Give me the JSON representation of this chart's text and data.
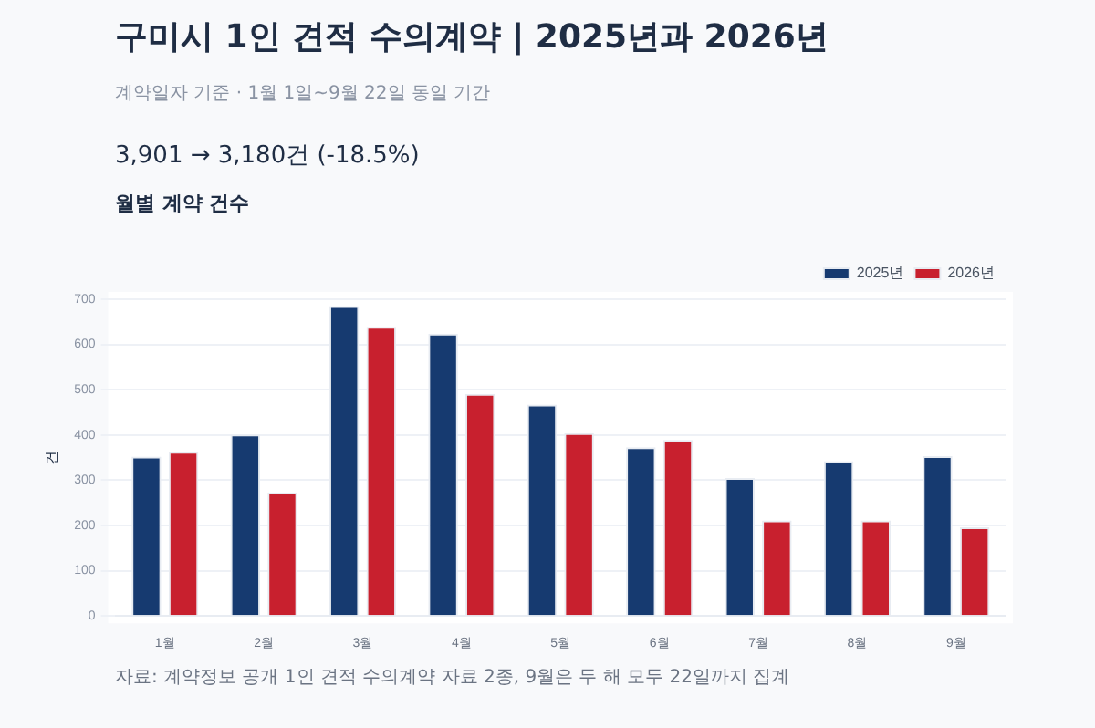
{
  "chart_data": {
    "type": "bar",
    "title": "구미시 1인 견적 수의계약 | 2025년과 2026년",
    "subtitle": "계약일자 기준 · 1월 1일~9월 22일 동일 기간",
    "ylabel": "건",
    "annotations": [
      "3,901 → 3,180건  (-18.5%)",
      "월별 계약 건수",
      "자료: 계약정보 공개 1인 견적 수의계약 자료 2종, 9월은 두 해 모두 22일까지 집계"
    ],
    "categories": [
      "1월",
      "2월",
      "3월",
      "4월",
      "5월",
      "6월",
      "7월",
      "8월",
      "9월"
    ],
    "series": [
      {
        "name": "2025년",
        "color": "#163a70",
        "values": [
          352,
          401,
          685,
          624,
          467,
          373,
          305,
          342,
          353
        ]
      },
      {
        "name": "2026년",
        "color": "#c8202e",
        "values": [
          363,
          273,
          639,
          491,
          404,
          389,
          211,
          211,
          196
        ]
      }
    ],
    "ylim": [
      0,
      700
    ],
    "yticks": [
      0,
      100,
      200,
      300,
      400,
      500,
      600,
      700
    ],
    "grid": "y",
    "legend": "top right"
  }
}
